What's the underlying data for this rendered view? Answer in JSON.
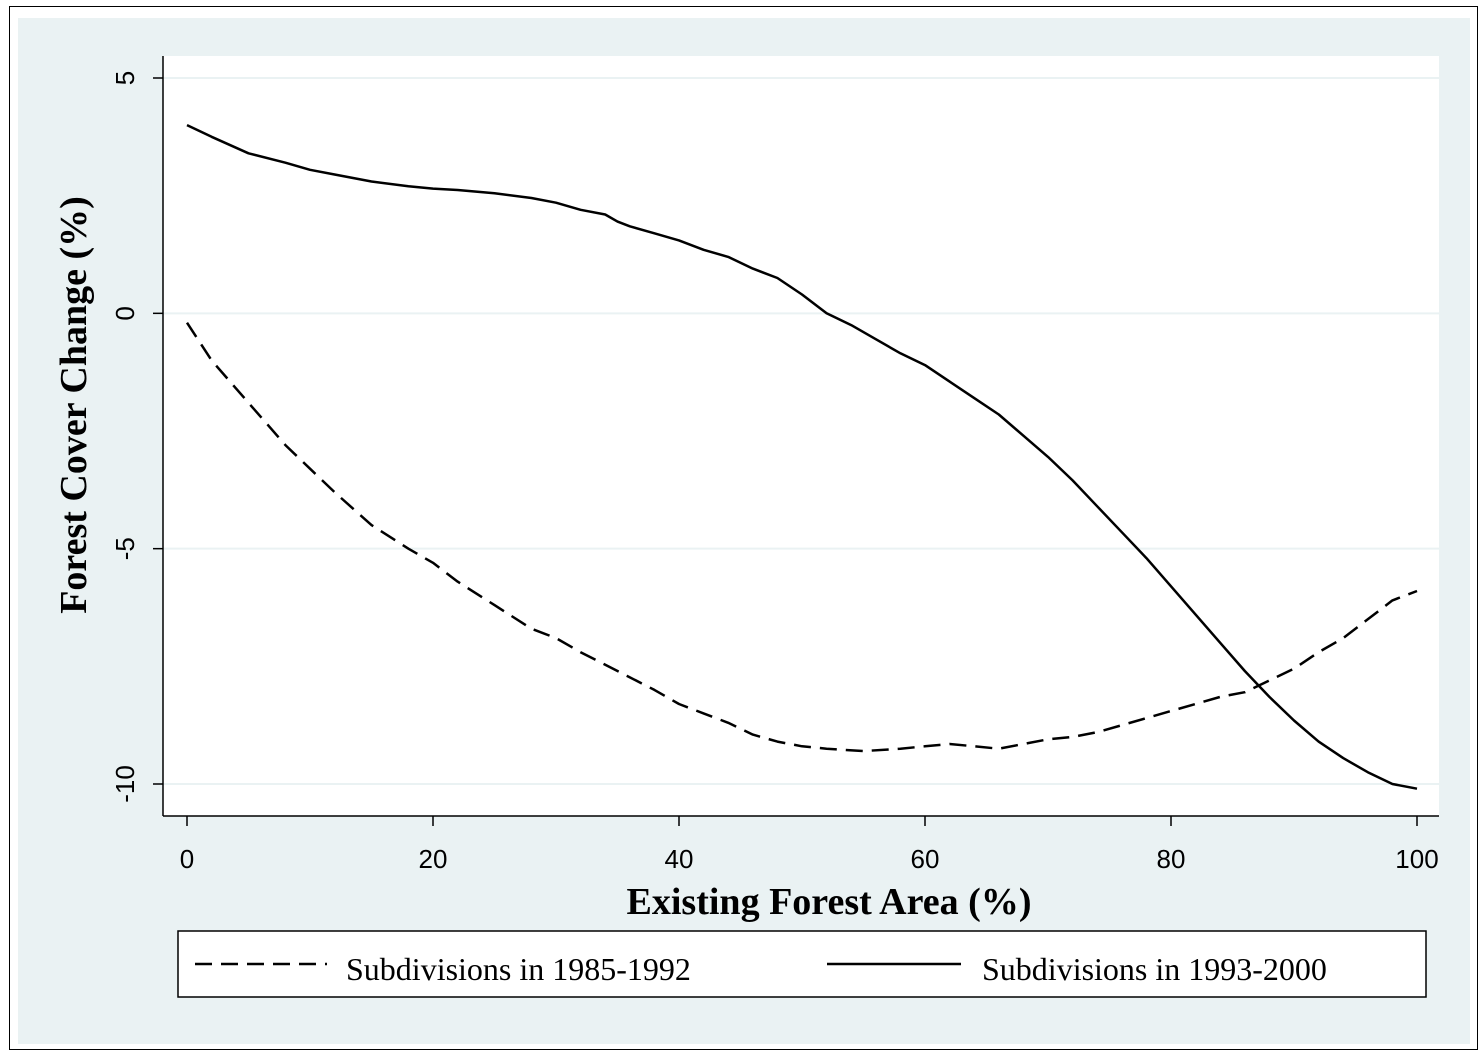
{
  "chart_data": {
    "type": "line",
    "title": "",
    "xlabel": "Existing Forest Area (%)",
    "ylabel": "Forest Cover Change (%)",
    "xlim": [
      0,
      100
    ],
    "ylim": [
      -10,
      5
    ],
    "x_ticks": [
      0,
      20,
      40,
      60,
      80,
      100
    ],
    "y_ticks": [
      5,
      0,
      -5,
      -10
    ],
    "x_tick_labels": [
      "0",
      "20",
      "40",
      "60",
      "80",
      "100"
    ],
    "y_tick_labels": [
      "5",
      "0",
      "-5",
      "-10"
    ],
    "grid": "horizontal",
    "legend_position": "bottom",
    "colors": {
      "outer_background": "#eaf2f3",
      "plot_background": "#ffffff",
      "gridline": "#eaf2f3",
      "line": "#000000"
    },
    "series": [
      {
        "name": "Subdivisions in 1985-1992",
        "style": "dashed",
        "x": [
          0,
          2,
          5,
          8,
          10,
          12,
          15,
          18,
          20,
          22,
          25,
          28,
          30,
          32,
          35,
          38,
          40,
          42,
          44,
          46,
          48,
          50,
          52,
          55,
          58,
          60,
          62,
          64,
          66,
          68,
          70,
          72,
          74,
          76,
          78,
          80,
          82,
          84,
          86,
          88,
          90,
          92,
          94,
          96,
          98,
          100
        ],
        "values": [
          -0.2,
          -1.0,
          -1.9,
          -2.8,
          -3.3,
          -3.8,
          -4.5,
          -5.0,
          -5.3,
          -5.7,
          -6.2,
          -6.7,
          -6.9,
          -7.2,
          -7.6,
          -8.0,
          -8.3,
          -8.5,
          -8.7,
          -8.95,
          -9.1,
          -9.2,
          -9.25,
          -9.3,
          -9.25,
          -9.2,
          -9.15,
          -9.2,
          -9.25,
          -9.15,
          -9.05,
          -9.0,
          -8.9,
          -8.75,
          -8.6,
          -8.45,
          -8.3,
          -8.15,
          -8.05,
          -7.8,
          -7.55,
          -7.2,
          -6.9,
          -6.5,
          -6.1,
          -5.9
        ]
      },
      {
        "name": "Subdivisions in 1993-2000",
        "style": "solid",
        "x": [
          0,
          2,
          5,
          8,
          10,
          12,
          15,
          18,
          20,
          22,
          25,
          28,
          30,
          32,
          34,
          35,
          36,
          38,
          40,
          42,
          44,
          46,
          48,
          50,
          52,
          54,
          56,
          58,
          60,
          62,
          64,
          66,
          68,
          70,
          72,
          74,
          76,
          78,
          80,
          82,
          84,
          86,
          88,
          90,
          92,
          94,
          96,
          98,
          100
        ],
        "values": [
          4.0,
          3.75,
          3.4,
          3.2,
          3.05,
          2.95,
          2.8,
          2.7,
          2.65,
          2.62,
          2.55,
          2.45,
          2.35,
          2.2,
          2.1,
          1.95,
          1.85,
          1.7,
          1.55,
          1.35,
          1.2,
          0.95,
          0.75,
          0.4,
          0.0,
          -0.25,
          -0.55,
          -0.85,
          -1.1,
          -1.45,
          -1.8,
          -2.15,
          -2.6,
          -3.05,
          -3.55,
          -4.1,
          -4.65,
          -5.2,
          -5.8,
          -6.4,
          -7.0,
          -7.6,
          -8.15,
          -8.65,
          -9.1,
          -9.45,
          -9.75,
          -10.0,
          -10.1
        ]
      }
    ]
  }
}
